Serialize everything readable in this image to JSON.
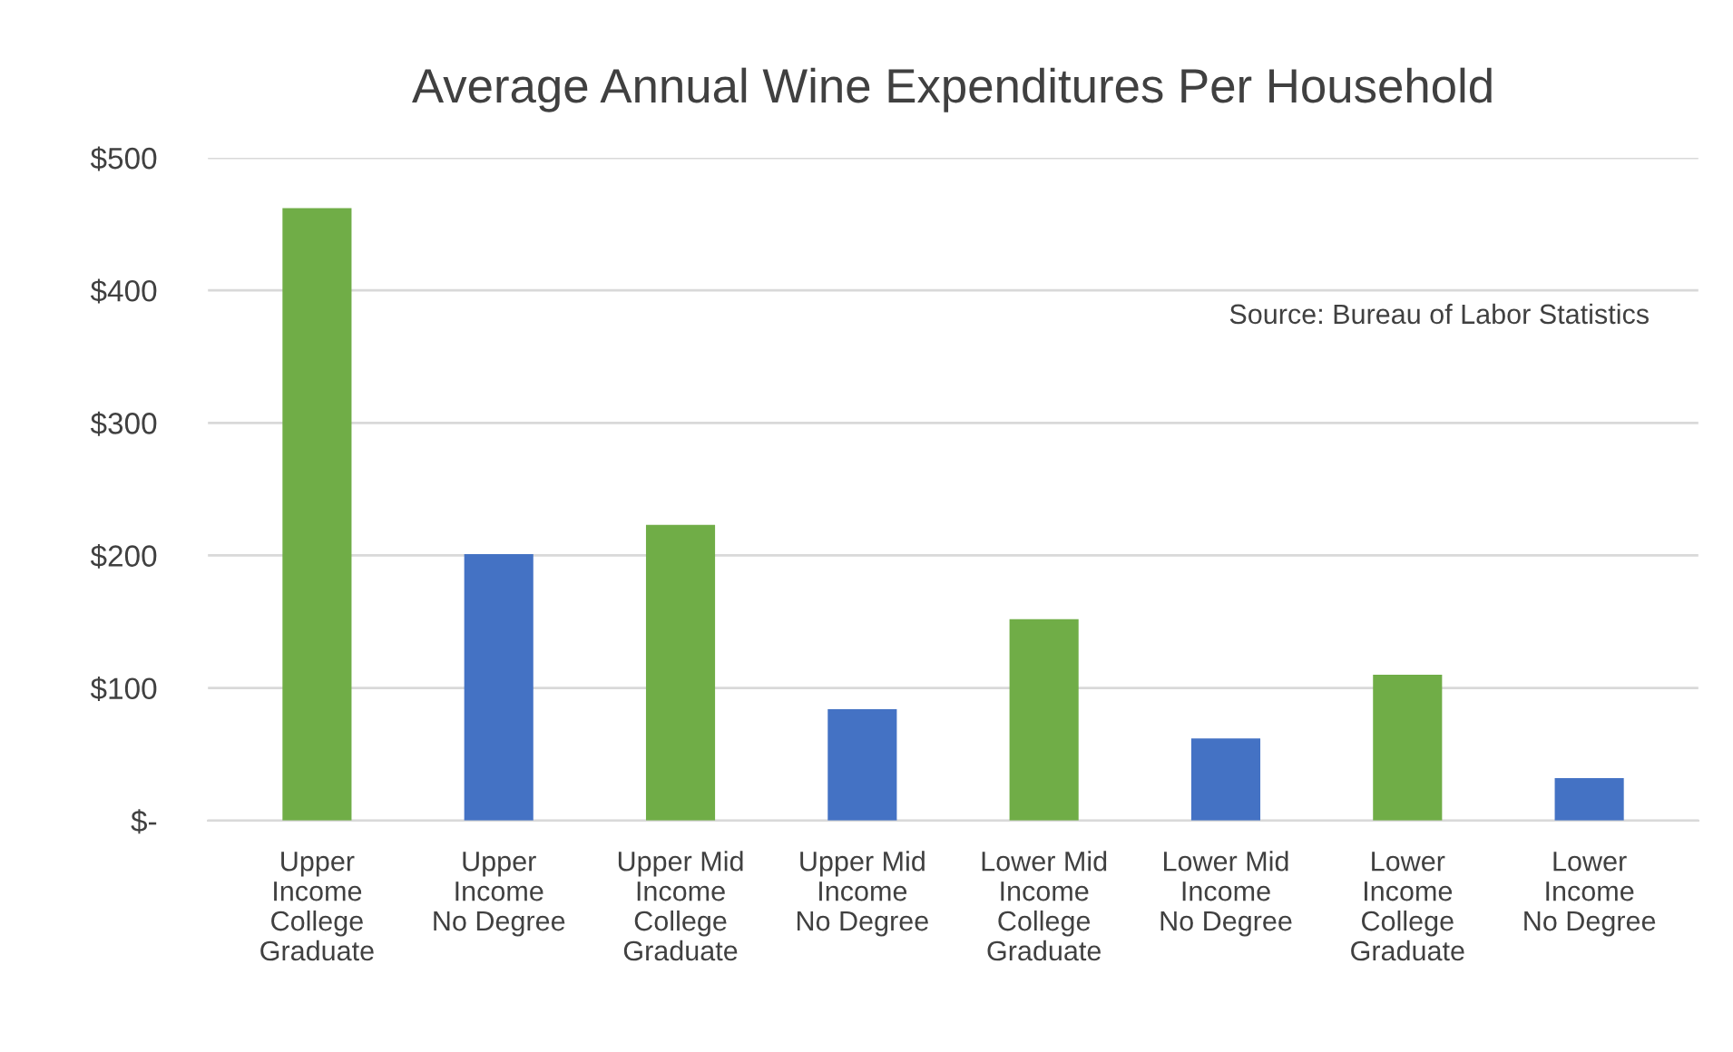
{
  "chart_data": {
    "type": "bar",
    "title": "Average Annual Wine Expenditures Per Household",
    "categories": [
      "Upper\nIncome\nCollege\nGraduate",
      "Upper\nIncome\nNo Degree",
      "Upper Mid\nIncome\nCollege\nGraduate",
      "Upper Mid\nIncome\nNo Degree",
      "Lower Mid\nIncome\nCollege\nGraduate",
      "Lower Mid\nIncome\nNo Degree",
      "Lower\nIncome\nCollege\nGraduate",
      "Lower\nIncome\nNo Degree"
    ],
    "values": [
      462,
      201,
      223,
      84,
      152,
      62,
      110,
      32
    ],
    "colors": [
      "#70ad47",
      "#4472c4",
      "#70ad47",
      "#4472c4",
      "#70ad47",
      "#4472c4",
      "#70ad47",
      "#4472c4"
    ],
    "ylim": [
      0,
      500
    ],
    "yticks": [
      {
        "value": 0,
        "label": "$-"
      },
      {
        "value": 100,
        "label": "$100"
      },
      {
        "value": 200,
        "label": "$200"
      },
      {
        "value": 300,
        "label": "$300"
      },
      {
        "value": 400,
        "label": "$400"
      },
      {
        "value": 500,
        "label": "$500"
      }
    ],
    "grid": "y",
    "annotations": [
      "Source: Bureau of Labor Statistics"
    ]
  }
}
